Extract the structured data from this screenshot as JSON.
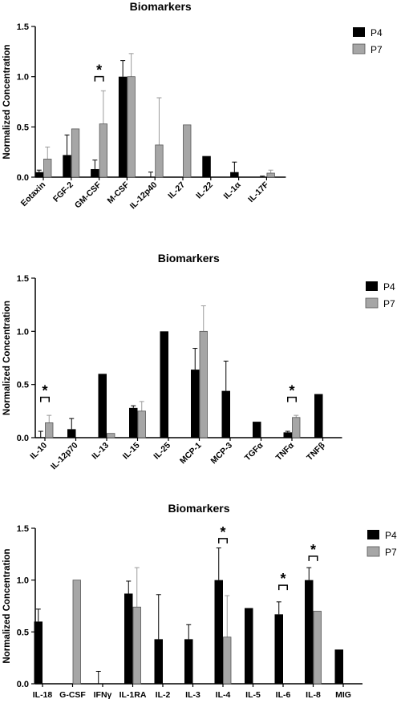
{
  "legend_labels": {
    "series1": "P4",
    "series2": "P7"
  },
  "colors": {
    "p4_fill": "#000000",
    "p7_fill": "#a6a6a6",
    "p7_stroke": "#555555",
    "axis": "#000000",
    "error_bar_p7": "#9a9a9a"
  },
  "chart_data": [
    {
      "type": "bar",
      "title": "Biomarkers",
      "ylabel": "Normalized Concentration",
      "ylim": [
        0,
        1.5
      ],
      "yticks": [
        "0.0",
        "0.5",
        "1.0",
        "1.5"
      ],
      "legend_position": "top-right",
      "categories": [
        "Eotaxin",
        "FGF-2",
        "GM-CSF",
        "M-CSF",
        "IL-12p40",
        "IL-27",
        "IL-22",
        "IL-1α",
        "IL-17F"
      ],
      "series": [
        {
          "name": "P4",
          "values": [
            0.05,
            0.22,
            0.08,
            1.0,
            0.0,
            0.0,
            0.21,
            0.05,
            0.0
          ],
          "errors": [
            0.02,
            0.2,
            0.09,
            0.16,
            0.05,
            0.0,
            0.0,
            0.1,
            0.01
          ]
        },
        {
          "name": "P7",
          "values": [
            0.18,
            0.48,
            0.53,
            1.0,
            0.32,
            0.52,
            0.0,
            0.0,
            0.04
          ],
          "errors": [
            0.12,
            0.0,
            0.33,
            0.23,
            0.47,
            0.0,
            0.0,
            0.0,
            0.03
          ]
        }
      ],
      "significance": [
        {
          "category_index": 2,
          "label": "*",
          "level": 1.0
        }
      ]
    },
    {
      "type": "bar",
      "title": "Biomarkers",
      "ylabel": "Normalized Concentration",
      "ylim": [
        0,
        1.5
      ],
      "yticks": [
        "0.0",
        "0.5",
        "1.0",
        "1.5"
      ],
      "legend_position": "top-right",
      "categories": [
        "IL-10",
        "IL-12p70",
        "IL-13",
        "IL-15",
        "IL-25",
        "MCP-1",
        "MCP-3",
        "TGFα",
        "TNFα",
        "TNFβ"
      ],
      "series": [
        {
          "name": "P4",
          "values": [
            0.0,
            0.08,
            0.6,
            0.28,
            1.0,
            0.64,
            0.44,
            0.15,
            0.05,
            0.41
          ],
          "errors": [
            0.06,
            0.1,
            0.0,
            0.02,
            0.0,
            0.2,
            0.28,
            0.0,
            0.01,
            0.0
          ]
        },
        {
          "name": "P7",
          "values": [
            0.14,
            0.0,
            0.04,
            0.25,
            0.0,
            1.0,
            0.0,
            0.0,
            0.19,
            0.0
          ],
          "errors": [
            0.07,
            0.0,
            0.0,
            0.09,
            0.0,
            0.24,
            0.0,
            0.0,
            0.02,
            0.0
          ]
        }
      ],
      "significance": [
        {
          "category_index": 0,
          "label": "*",
          "level": 0.38
        },
        {
          "category_index": 8,
          "label": "*",
          "level": 0.38
        }
      ]
    },
    {
      "type": "bar",
      "title": "Biomarkers",
      "ylabel": "Normalized Concentration",
      "ylim": [
        0,
        1.5
      ],
      "yticks": [
        "0.0",
        "0.5",
        "1.0",
        "1.5"
      ],
      "legend_position": "top-right",
      "categories": [
        "IL-18",
        "G-CSF",
        "IFNγ",
        "IL-1RA",
        "IL-2",
        "IL-3",
        "IL-4",
        "IL-5",
        "IL-6",
        "IL-8",
        "MIG"
      ],
      "series": [
        {
          "name": "P4",
          "values": [
            0.6,
            0.0,
            0.0,
            0.87,
            0.43,
            0.43,
            1.0,
            0.73,
            0.67,
            1.0,
            0.33
          ],
          "errors": [
            0.12,
            0.0,
            0.12,
            0.12,
            0.43,
            0.14,
            0.31,
            0.0,
            0.12,
            0.12,
            0.0
          ]
        },
        {
          "name": "P7",
          "values": [
            0.0,
            1.0,
            0.0,
            0.74,
            0.0,
            0.0,
            0.45,
            0.0,
            0.0,
            0.7,
            0.0
          ],
          "errors": [
            0.0,
            0.0,
            0.0,
            0.38,
            0.0,
            0.0,
            0.4,
            0.0,
            0.0,
            0.0,
            0.0
          ]
        }
      ],
      "significance": [
        {
          "category_index": 6,
          "label": "*",
          "level": 1.4
        },
        {
          "category_index": 8,
          "label": "*",
          "level": 0.95
        },
        {
          "category_index": 9,
          "label": "*",
          "level": 1.23
        }
      ]
    }
  ]
}
